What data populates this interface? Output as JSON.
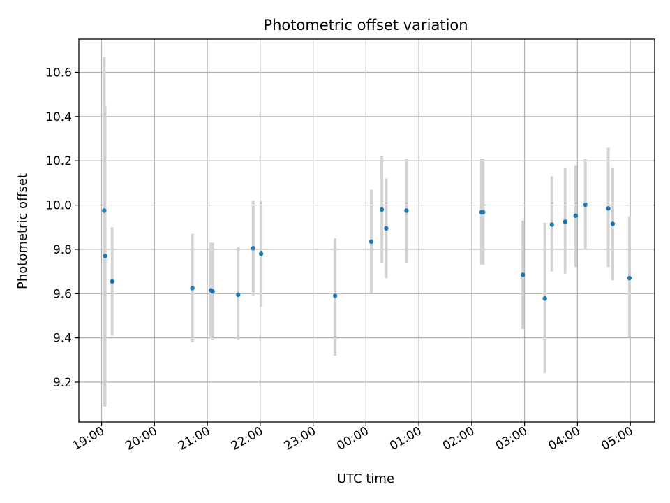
{
  "chart_data": {
    "type": "scatter",
    "title": "Photometric offset variation",
    "xlabel": "UTC time",
    "ylabel": "Photometric offset",
    "x_tick_labels": [
      "19:00",
      "20:00",
      "21:00",
      "22:00",
      "23:00",
      "00:00",
      "01:00",
      "02:00",
      "03:00",
      "04:00",
      "05:00"
    ],
    "y_ticks": [
      9.2,
      9.4,
      9.6,
      9.8,
      10.0,
      10.2,
      10.4,
      10.6
    ],
    "y_tick_labels": [
      "9.2",
      "9.4",
      "9.6",
      "9.8",
      "10.0",
      "10.2",
      "10.4",
      "10.6"
    ],
    "xlim_hours_from_19": [
      -0.43,
      10.46
    ],
    "ylim": [
      9.02,
      10.75
    ],
    "grid": true,
    "point_color": "#1f77b4",
    "errorbar_color": "#d3d3d3",
    "series": [
      {
        "points": [
          {
            "time": "19:03",
            "y": 9.975,
            "err_low": 9.09,
            "err_high": 10.67
          },
          {
            "time": "19:04",
            "y": 9.77,
            "err_low": 9.09,
            "err_high": 10.45
          },
          {
            "time": "19:12",
            "y": 9.655,
            "err_low": 9.41,
            "err_high": 9.9
          },
          {
            "time": "20:43",
            "y": 9.625,
            "err_low": 9.38,
            "err_high": 9.87
          },
          {
            "time": "21:04",
            "y": 9.615,
            "err_low": 9.4,
            "err_high": 9.83
          },
          {
            "time": "21:06",
            "y": 9.61,
            "err_low": 9.39,
            "err_high": 9.83
          },
          {
            "time": "21:35",
            "y": 9.595,
            "err_low": 9.39,
            "err_high": 9.81
          },
          {
            "time": "21:52",
            "y": 9.805,
            "err_low": 9.59,
            "err_high": 10.02
          },
          {
            "time": "22:01",
            "y": 9.78,
            "err_low": 9.54,
            "err_high": 10.02
          },
          {
            "time": "23:25",
            "y": 9.59,
            "err_low": 9.32,
            "err_high": 9.85
          },
          {
            "time": "00:06",
            "y": 9.835,
            "err_low": 9.6,
            "err_high": 10.07
          },
          {
            "time": "00:18",
            "y": 9.98,
            "err_low": 9.74,
            "err_high": 10.22
          },
          {
            "time": "00:23",
            "y": 9.895,
            "err_low": 9.67,
            "err_high": 10.12
          },
          {
            "time": "00:46",
            "y": 9.975,
            "err_low": 9.74,
            "err_high": 10.21
          },
          {
            "time": "02:11",
            "y": 9.968,
            "err_low": 9.73,
            "err_high": 10.21
          },
          {
            "time": "02:13",
            "y": 9.968,
            "err_low": 9.73,
            "err_high": 10.21
          },
          {
            "time": "02:58",
            "y": 9.685,
            "err_low": 9.44,
            "err_high": 9.93
          },
          {
            "time": "03:23",
            "y": 9.578,
            "err_low": 9.24,
            "err_high": 9.92
          },
          {
            "time": "03:31",
            "y": 9.912,
            "err_low": 9.7,
            "err_high": 10.13
          },
          {
            "time": "03:46",
            "y": 9.925,
            "err_low": 9.69,
            "err_high": 10.17
          },
          {
            "time": "03:58",
            "y": 9.952,
            "err_low": 9.72,
            "err_high": 10.18
          },
          {
            "time": "04:09",
            "y": 10.002,
            "err_low": 9.8,
            "err_high": 10.21
          },
          {
            "time": "04:35",
            "y": 9.985,
            "err_low": 9.72,
            "err_high": 10.26
          },
          {
            "time": "04:40",
            "y": 9.915,
            "err_low": 9.66,
            "err_high": 10.17
          },
          {
            "time": "04:59",
            "y": 9.67,
            "err_low": 9.4,
            "err_high": 9.95
          }
        ]
      }
    ]
  }
}
